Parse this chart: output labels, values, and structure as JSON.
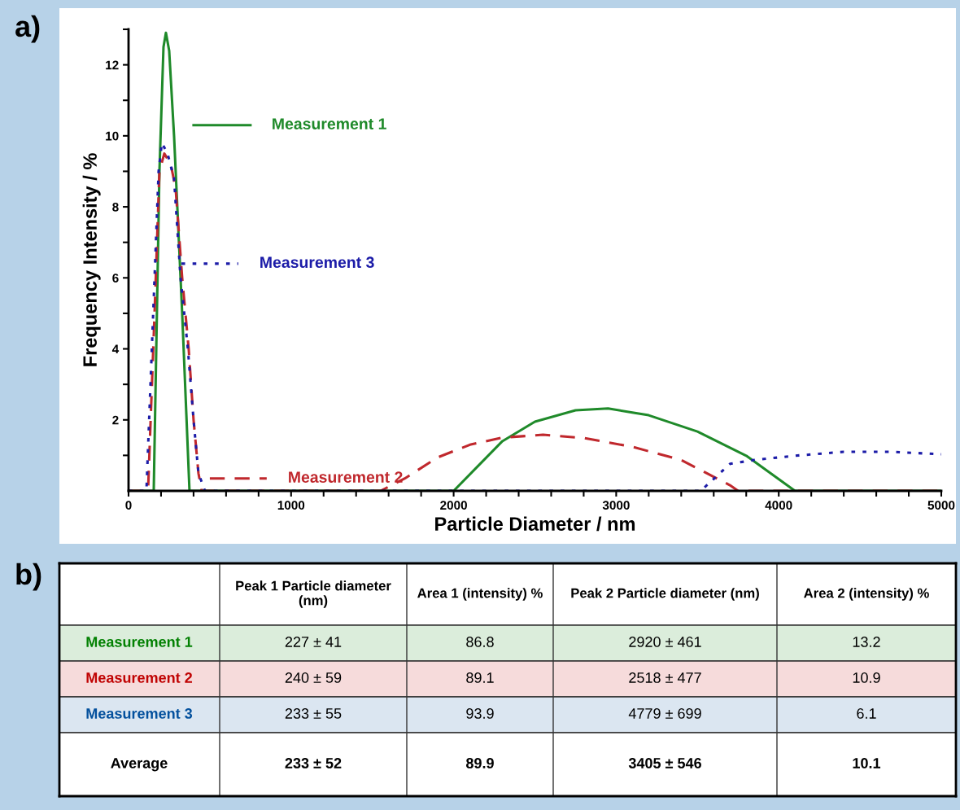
{
  "chart_data": [
    {
      "type": "line",
      "xlabel": "Particle Diameter / nm",
      "ylabel": "Frequency Intensity / %",
      "annotations": [
        "a)"
      ],
      "xlim": [
        0,
        5000
      ],
      "ylim": [
        0,
        13
      ],
      "xticks": [
        0,
        {
          "value": 200,
          "label": null
        },
        {
          "value": 400,
          "label": null
        },
        {
          "value": 600,
          "label": null
        },
        {
          "value": 800,
          "label": null
        },
        1000,
        {
          "value": 1200,
          "label": null
        },
        {
          "value": 1400,
          "label": null
        },
        {
          "value": 1600,
          "label": null
        },
        {
          "value": 1800,
          "label": null
        },
        2000,
        {
          "value": 2200,
          "label": null
        },
        {
          "value": 2400,
          "label": null
        },
        {
          "value": 2600,
          "label": null
        },
        {
          "value": 2800,
          "label": null
        },
        3000,
        {
          "value": 3200,
          "label": null
        },
        {
          "value": 3400,
          "label": null
        },
        {
          "value": 3600,
          "label": null
        },
        {
          "value": 3800,
          "label": null
        },
        4000,
        {
          "value": 4200,
          "label": null
        },
        {
          "value": 4400,
          "label": null
        },
        {
          "value": 4600,
          "label": null
        },
        {
          "value": 4800,
          "label": null
        },
        5000
      ],
      "yticks": [
        {
          "value": 1,
          "label": null
        },
        2,
        {
          "value": 3,
          "label": null
        },
        4,
        {
          "value": 5,
          "label": null
        },
        6,
        {
          "value": 7,
          "label": null
        },
        8,
        {
          "value": 9,
          "label": null
        },
        10,
        {
          "value": 11,
          "label": null
        },
        12,
        {
          "value": 13,
          "label": null
        }
      ],
      "grid": false,
      "legend": "left",
      "series": [
        {
          "name": "Measurement 1",
          "color": "#1f8a2a",
          "line_style": "solid",
          "x": [
            0,
            155,
            190,
            215,
            230,
            250,
            280,
            330,
            375,
            2000,
            2300,
            2500,
            2750,
            2950,
            3200,
            3500,
            3800,
            4100,
            5000
          ],
          "values": [
            0,
            0,
            9,
            12.5,
            12.9,
            12.4,
            10,
            5,
            0,
            0,
            1.4,
            1.95,
            2.27,
            2.32,
            2.13,
            1.67,
            0.99,
            0,
            0
          ]
        },
        {
          "name": "Measurement 2",
          "color": "#c0282d",
          "line_style": "dashed",
          "x": [
            0,
            120,
            160,
            190,
            220,
            260,
            290,
            330,
            370,
            400,
            430,
            450,
            1550,
            1700,
            1900,
            2100,
            2300,
            2550,
            2800,
            3100,
            3400,
            3700,
            3750,
            5000
          ],
          "values": [
            0,
            0,
            5,
            9,
            9.5,
            9.2,
            8.5,
            6,
            4,
            2,
            0.5,
            0,
            0,
            0.35,
            0.94,
            1.3,
            1.5,
            1.58,
            1.49,
            1.24,
            0.87,
            0.16,
            0,
            0
          ]
        },
        {
          "name": "Measurement 3",
          "color": "#1c1ca8",
          "line_style": "dotted",
          "x": [
            0,
            110,
            160,
            185,
            205,
            240,
            280,
            320,
            365,
            400,
            430,
            470,
            3520,
            3700,
            3850,
            4100,
            4400,
            4700,
            5000
          ],
          "values": [
            0,
            0,
            6,
            9,
            9.8,
            9.5,
            8.8,
            6,
            4,
            2,
            0.5,
            0,
            0,
            0.76,
            0.87,
            0.99,
            1.1,
            1.1,
            1.03
          ]
        }
      ]
    },
    {
      "type": "other",
      "annotations": [
        "b)"
      ],
      "categories": [
        "Peak 1 Particle diameter (nm)",
        "Area 1 (intensity) %",
        "Peak 2 Particle diameter (nm)",
        "Area 2 (intensity) %"
      ],
      "series": [
        {
          "name": "Measurement 1",
          "color": "#dbeddb",
          "values": [
            227,
            86.8,
            2920,
            13.2
          ],
          "value_labels": [
            "227 ± 41",
            "86.8",
            "2920 ± 461",
            "13.2"
          ]
        },
        {
          "name": "Measurement 2",
          "color": "#f6dbdb",
          "values": [
            240,
            89.1,
            2518,
            10.9
          ],
          "value_labels": [
            "240 ± 59",
            "89.1",
            "2518 ± 477",
            "10.9"
          ]
        },
        {
          "name": "Measurement 3",
          "color": "#dbe6f1",
          "values": [
            233,
            93.9,
            4779,
            6.1
          ],
          "value_labels": [
            "233 ± 55",
            "93.9",
            "4779 ± 699",
            "6.1"
          ]
        },
        {
          "name": "Average",
          "values": [
            233,
            89.9,
            3405,
            10.1
          ],
          "value_labels": [
            "233 ± 52",
            "89.9",
            "3405 ± 546",
            "10.1"
          ]
        }
      ]
    }
  ]
}
